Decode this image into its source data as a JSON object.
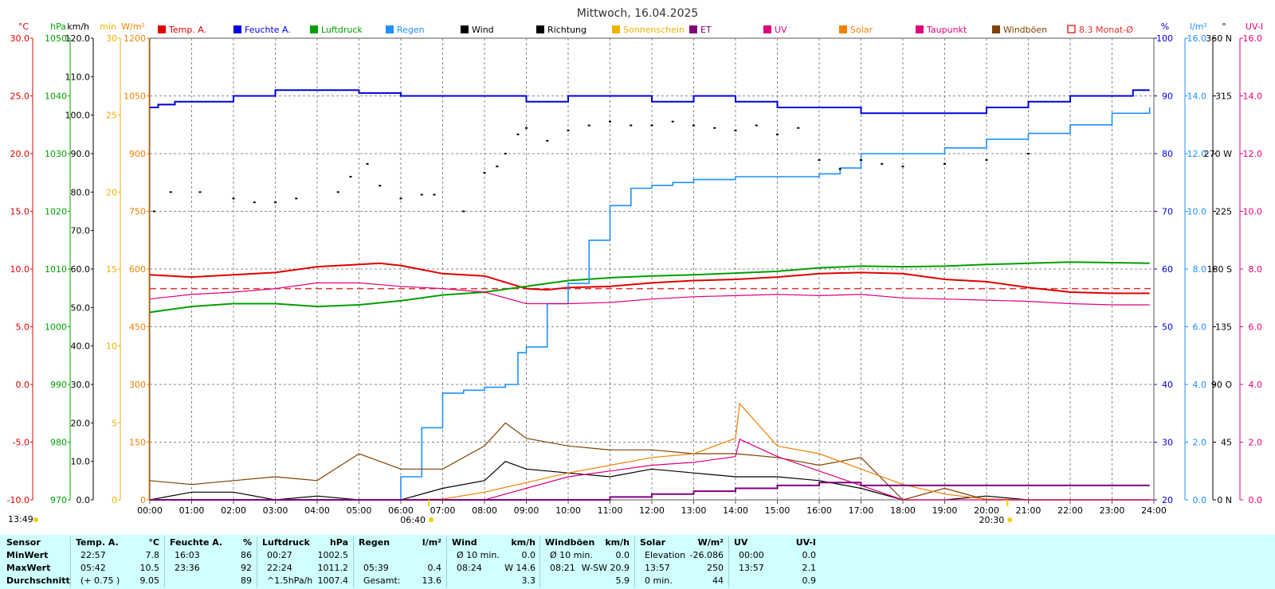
{
  "title": "Mittwoch, 16.04.2025",
  "colors": {
    "temp": "#e00000",
    "humidity": "#0000e0",
    "pressure": "#00a000",
    "rain": "#1e90ff",
    "wind": "#000000",
    "direction": "#000000",
    "sunshine": "#f0b000",
    "et": "#800080",
    "uv": "#e0007a",
    "solar": "#f08000",
    "dewpoint": "#e0007a",
    "gust": "#804000",
    "avg": "#e03030",
    "stats_bg": "#cfffff"
  },
  "legend": [
    {
      "label": "Temp. A.",
      "color": "#e00000"
    },
    {
      "label": "Feuchte A.",
      "color": "#0000e0"
    },
    {
      "label": "Luftdruck",
      "color": "#00a000"
    },
    {
      "label": "Regen",
      "color": "#1e90ff"
    },
    {
      "label": "Wind",
      "color": "#000000"
    },
    {
      "label": "Richtung",
      "color": "#000000"
    },
    {
      "label": "Sonnenschein",
      "color": "#f0b000"
    },
    {
      "label": "ET",
      "color": "#800080"
    },
    {
      "label": "UV",
      "color": "#e0007a"
    },
    {
      "label": "Solar",
      "color": "#f08000"
    },
    {
      "label": "Taupunkt",
      "color": "#e0007a"
    },
    {
      "label": "Windböen",
      "color": "#804000"
    },
    {
      "label": "8.3 Monat-Ø",
      "color": "#e03030",
      "outline": true
    }
  ],
  "axes_left": [
    {
      "unit": "°C",
      "color": "#e00000",
      "ticks": [
        "30.0",
        "25.0",
        "20.0",
        "15.0",
        "10.0",
        "5.0",
        "0.0",
        "-5.0",
        "-10.0"
      ]
    },
    {
      "unit": "hPa",
      "color": "#00a000",
      "ticks": [
        "1050",
        "1040",
        "1030",
        "1020",
        "1010",
        "1000",
        "990",
        "980",
        "970"
      ]
    },
    {
      "unit": "km/h",
      "color": "#000000",
      "ticks": [
        "120.0",
        "110.0",
        "100.0",
        "90.0",
        "80.0",
        "70.0",
        "60.0",
        "50.0",
        "40.0",
        "30.0",
        "20.0",
        "10.0",
        "0.0"
      ]
    },
    {
      "unit": "min",
      "color": "#f0b000",
      "ticks": [
        "30",
        "25",
        "20",
        "15",
        "10",
        "5",
        "0"
      ]
    },
    {
      "unit": "W/m²",
      "color": "#f08000",
      "ticks": [
        "1200",
        "1050",
        "900",
        "750",
        "600",
        "450",
        "300",
        "150",
        "0"
      ]
    }
  ],
  "axes_right": [
    {
      "unit": "%",
      "color": "#0000e0",
      "ticks": [
        "100",
        "90",
        "80",
        "70",
        "60",
        "50",
        "40",
        "30",
        "20"
      ]
    },
    {
      "unit": "l/m²",
      "color": "#1e90ff",
      "ticks": [
        "16.0",
        "14.0",
        "12.0",
        "10.0",
        "8.0",
        "6.0",
        "4.0",
        "2.0",
        "0.0"
      ]
    },
    {
      "unit": "°",
      "color": "#000000",
      "ticks": [
        "360 N",
        "315",
        "270 W",
        "225",
        "180 S",
        "135",
        "90 O",
        "45",
        "0 N"
      ]
    },
    {
      "unit": "UV-I",
      "color": "#e0007a",
      "ticks": [
        "16.0",
        "14.0",
        "12.0",
        "10.0",
        "8.0",
        "6.0",
        "4.0",
        "2.0",
        "0.0"
      ]
    }
  ],
  "x_ticks": [
    "00:00",
    "01:00",
    "02:00",
    "03:00",
    "04:00",
    "05:00",
    "06:00",
    "07:00",
    "08:00",
    "09:00",
    "10:00",
    "11:00",
    "12:00",
    "13:00",
    "14:00",
    "15:00",
    "16:00",
    "17:00",
    "18:00",
    "19:00",
    "20:00",
    "21:00",
    "22:00",
    "23:00",
    "24:00"
  ],
  "sunrise": "06:40",
  "sunset": "20:30",
  "sun_duration": "13:49",
  "chart_data": {
    "type": "line",
    "x_range": [
      "00:00",
      "24:00"
    ],
    "grid": true,
    "legend_position": "top",
    "month_avg_temp": 8.3,
    "series": [
      {
        "name": "Temp. A.",
        "unit": "°C",
        "axis": [
          -10,
          30
        ],
        "x": [
          0,
          1,
          2,
          3,
          4,
          5,
          5.5,
          6,
          7,
          8,
          9,
          9.5,
          10,
          11,
          12,
          13,
          14,
          15,
          16,
          17,
          18,
          19,
          20,
          21,
          22,
          23,
          23.9
        ],
        "y": [
          9.5,
          9.3,
          9.5,
          9.7,
          10.2,
          10.4,
          10.5,
          10.3,
          9.6,
          9.4,
          8.3,
          8.2,
          8.4,
          8.5,
          8.8,
          9.0,
          9.1,
          9.3,
          9.6,
          9.7,
          9.6,
          9.1,
          8.9,
          8.4,
          8.0,
          7.9,
          7.9
        ]
      },
      {
        "name": "Feuchte A.",
        "unit": "%",
        "axis": [
          20,
          100
        ],
        "x": [
          0,
          0.2,
          0.6,
          1.2,
          2.0,
          3.0,
          4.0,
          5.0,
          6.0,
          8.0,
          8.7,
          9.0,
          10.0,
          11.0,
          12.0,
          13.0,
          13.7,
          14.0,
          15.0,
          16.0,
          16.5,
          17.0,
          19.0,
          20.0,
          21.0,
          22.0,
          23.0,
          23.5,
          23.9
        ],
        "y": [
          88,
          88.5,
          89,
          89,
          90,
          91,
          91,
          90.5,
          90,
          90,
          90,
          89,
          90,
          90,
          89,
          90,
          90,
          89,
          88,
          88,
          88,
          87,
          87,
          88,
          89,
          90,
          90,
          91,
          91
        ]
      },
      {
        "name": "Luftdruck",
        "unit": "hPa",
        "axis": [
          970,
          1050
        ],
        "x": [
          0,
          1,
          2,
          3,
          4,
          5,
          6,
          7,
          8,
          9,
          10,
          11,
          12,
          13,
          14,
          15,
          16,
          17,
          18,
          19,
          20,
          21,
          22,
          23,
          23.9
        ],
        "y": [
          1002.5,
          1003.5,
          1004,
          1004,
          1003.5,
          1003.8,
          1004.5,
          1005.5,
          1006,
          1007,
          1008,
          1008.5,
          1008.8,
          1009,
          1009.3,
          1009.6,
          1010.2,
          1010.5,
          1010.4,
          1010.5,
          1010.8,
          1011,
          1011.2,
          1011.1,
          1011.0
        ]
      },
      {
        "name": "Regen",
        "unit": "l/m²",
        "axis": [
          0,
          16
        ],
        "x": [
          0,
          5.5,
          6,
          6.5,
          7,
          7.5,
          8,
          8.5,
          8.8,
          9,
          9.5,
          10,
          10.5,
          11,
          11.5,
          12,
          12.5,
          13,
          14,
          15,
          16,
          16.5,
          17,
          18,
          19,
          20,
          21,
          22,
          23,
          23.9
        ],
        "y": [
          0,
          0,
          0.8,
          2.5,
          3.7,
          3.8,
          3.9,
          4.0,
          5.1,
          5.3,
          6.8,
          7.5,
          9.0,
          10.2,
          10.8,
          10.9,
          11.0,
          11.1,
          11.2,
          11.2,
          11.3,
          11.5,
          12.0,
          12.0,
          12.2,
          12.5,
          12.7,
          13.0,
          13.4,
          13.6
        ]
      },
      {
        "name": "Taupunkt",
        "unit": "°C",
        "axis": [
          -10,
          30
        ],
        "x": [
          0,
          1,
          2,
          3,
          4,
          5,
          6,
          7,
          8,
          9,
          10,
          11,
          12,
          13,
          14,
          15,
          16,
          17,
          18,
          19,
          20,
          21,
          22,
          23,
          23.9
        ],
        "y": [
          7.4,
          7.8,
          8.0,
          8.3,
          8.8,
          8.8,
          8.5,
          8.3,
          8.0,
          7.0,
          7.0,
          7.1,
          7.4,
          7.6,
          7.7,
          7.8,
          7.7,
          7.8,
          7.5,
          7.4,
          7.3,
          7.2,
          7.0,
          6.9,
          6.9
        ]
      },
      {
        "name": "Wind",
        "unit": "km/h",
        "axis": [
          0,
          120
        ],
        "x": [
          0,
          1,
          2,
          3,
          4,
          5,
          6,
          7,
          8,
          8.5,
          9,
          10,
          11,
          12,
          13,
          14,
          15,
          16,
          17,
          18,
          19,
          20,
          21,
          22,
          23,
          23.9
        ],
        "y": [
          0,
          2,
          2,
          0,
          1,
          0,
          0,
          3,
          5,
          10,
          8,
          7,
          6,
          8,
          7,
          6,
          6,
          5,
          3,
          0,
          0,
          1,
          0,
          0,
          0,
          0
        ]
      },
      {
        "name": "Windböen",
        "unit": "km/h",
        "axis": [
          0,
          120
        ],
        "x": [
          0,
          1,
          2,
          3,
          4,
          5,
          5.5,
          6,
          7,
          8,
          8.5,
          9,
          10,
          11,
          12,
          13,
          14,
          15,
          16,
          17,
          18,
          19,
          20,
          21,
          22,
          23,
          23.9
        ],
        "y": [
          5,
          4,
          5,
          6,
          5,
          12,
          10,
          8,
          8,
          14,
          20,
          16,
          14,
          13,
          13,
          12,
          12,
          11,
          9,
          11,
          0,
          3,
          0,
          0,
          0,
          0,
          0
        ]
      },
      {
        "name": "Solar",
        "unit": "W/m²",
        "axis": [
          0,
          1200
        ],
        "x": [
          0,
          6,
          7,
          8,
          9,
          10,
          11,
          12,
          13,
          14,
          14.1,
          15,
          16,
          17,
          18,
          19,
          20,
          21,
          24
        ],
        "y": [
          0,
          0,
          2,
          20,
          45,
          70,
          90,
          110,
          120,
          160,
          250,
          140,
          120,
          80,
          40,
          15,
          2,
          0,
          0
        ]
      },
      {
        "name": "UV",
        "unit": "UV-I",
        "axis": [
          0,
          16
        ],
        "x": [
          0,
          8,
          9,
          10,
          11,
          12,
          13,
          14,
          14.1,
          15,
          16,
          17,
          18,
          24
        ],
        "y": [
          0,
          0,
          0.4,
          0.8,
          1.0,
          1.2,
          1.3,
          1.5,
          2.1,
          1.5,
          1.0,
          0.5,
          0,
          0
        ]
      },
      {
        "name": "ET",
        "unit": "l/m²",
        "axis": [
          0,
          16
        ],
        "x": [
          0,
          9,
          11,
          12,
          13,
          14,
          15,
          16,
          17,
          18,
          20,
          22,
          23.9
        ],
        "y": [
          0,
          0,
          0.1,
          0.2,
          0.3,
          0.4,
          0.5,
          0.6,
          0.5,
          0.5,
          0.5,
          0.5,
          0.5
        ]
      },
      {
        "name": "Richtung",
        "unit": "°",
        "axis": [
          0,
          360
        ],
        "type": "scatter",
        "x": [
          0.1,
          0.5,
          1.2,
          2.0,
          2.5,
          3.0,
          3.5,
          4.5,
          4.8,
          5.2,
          5.5,
          6.0,
          6.5,
          6.8,
          7.5,
          8.0,
          8.3,
          8.5,
          8.8,
          9.0,
          9.5,
          10.0,
          10.5,
          11.0,
          11.5,
          12.0,
          12.5,
          13.0,
          13.5,
          14.0,
          14.5,
          15.0,
          15.5,
          16.0,
          16.5,
          17.0,
          17.5,
          18.0,
          19.0,
          20.0,
          21.0
        ],
        "y": [
          225,
          240,
          240,
          235,
          232,
          232,
          235,
          240,
          252,
          262,
          245,
          235,
          238,
          238,
          225,
          255,
          260,
          270,
          285,
          290,
          280,
          288,
          292,
          295,
          292,
          292,
          295,
          292,
          290,
          288,
          292,
          285,
          290,
          265,
          258,
          265,
          262,
          260,
          262,
          265,
          270
        ]
      }
    ]
  },
  "stats": {
    "headers": {
      "sensor": "Sensor",
      "temp": "Temp. A.",
      "temp_unit": "°C",
      "hum": "Feuchte A.",
      "hum_unit": "%",
      "press": "Luftdruck",
      "press_unit": "hPa",
      "rain": "Regen",
      "rain_unit": "l/m²",
      "wind": "Wind",
      "wind_unit": "km/h",
      "gust": "Windböen",
      "gust_unit": "km/h",
      "solar": "Solar",
      "solar_unit": "W/m²",
      "uv": "UV",
      "uv_unit": "UV-I"
    },
    "rows": [
      {
        "label": "MinWert",
        "temp_t": "22:57",
        "temp_v": "7.8",
        "hum_t": "16:03",
        "hum_v": "86",
        "press_t": "00:27",
        "press_v": "1002.5",
        "rain_t": "",
        "rain_v": "",
        "wind_t": "Ø 10 min.",
        "wind_v": "0.0",
        "gust_t": "Ø 10 min.",
        "gust_v": "0.0",
        "solar_t": "Elevation",
        "solar_v": "-26.086",
        "uv_t": "00:00",
        "uv_v": "0.0"
      },
      {
        "label": "MaxWert",
        "temp_t": "05:42",
        "temp_v": "10.5",
        "hum_t": "23:36",
        "hum_v": "92",
        "press_t": "22:24",
        "press_v": "1011.2",
        "rain_t": "05:39",
        "rain_v": "0.4",
        "wind_t": "08:24",
        "wind_v": "W 14.6",
        "gust_t": "08:21",
        "gust_v": "W-SW 20.9",
        "solar_t": "13:57",
        "solar_v": "250",
        "uv_t": "13:57",
        "uv_v": "2.1"
      },
      {
        "label": "Durchschnitt",
        "temp_t": "(+ 0.75 )",
        "temp_v": "9.05",
        "hum_t": "",
        "hum_v": "89",
        "press_t": "^1.5hPa/h",
        "press_v": "1007.4",
        "rain_t": "Gesamt:",
        "rain_v": "13.6",
        "wind_t": "",
        "wind_v": "3.3",
        "gust_t": "",
        "gust_v": "5.9",
        "solar_t": "0 min.",
        "solar_v": "44",
        "uv_t": "",
        "uv_v": "0.9"
      }
    ]
  }
}
